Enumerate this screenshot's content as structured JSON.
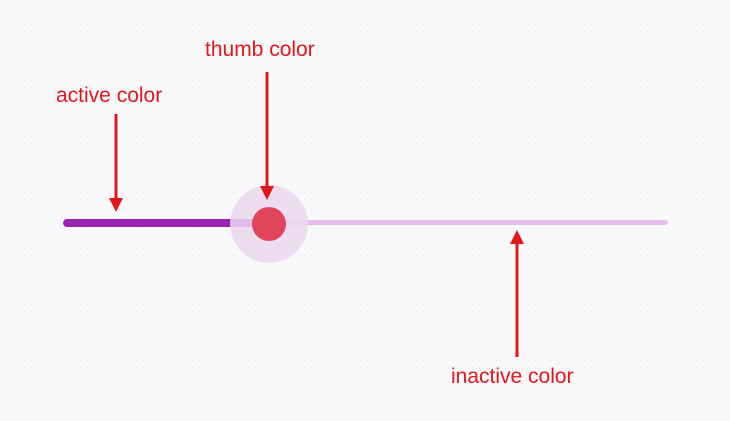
{
  "annotations": {
    "thumb_label": "thumb color",
    "active_label": "active color",
    "inactive_label": "inactive color"
  },
  "slider": {
    "value_fraction": 0.34
  },
  "colors": {
    "background": "#f9f9fb",
    "annotation": "#e3161b",
    "active_track": "#9c24b4",
    "inactive_track": "#e3bfe8",
    "thumb": "#e2445c",
    "thumb_halo": "#ecd8ef"
  }
}
